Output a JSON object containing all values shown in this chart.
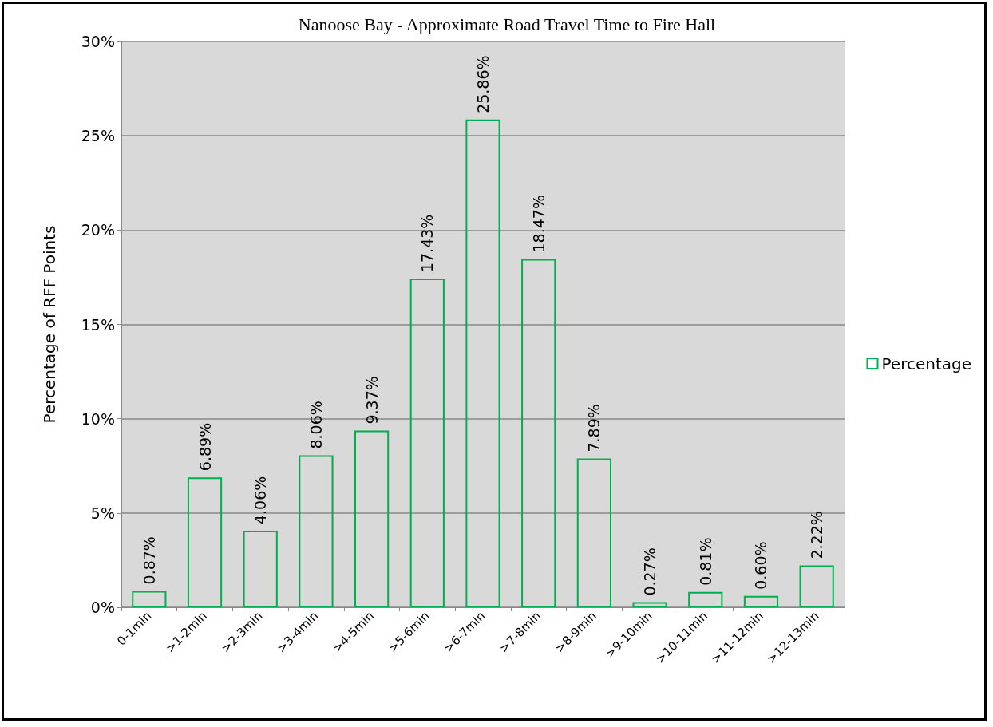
{
  "chart_data": {
    "type": "bar",
    "title": "Nanoose Bay - Approximate Road Travel Time to Fire Hall",
    "ylabel": "Percentage of RFF Points",
    "categories": [
      "0-1min",
      ">1-2min",
      ">2-3min",
      ">3-4min",
      ">4-5min",
      ">5-6min",
      ">6-7min",
      ">7-8min",
      ">8-9min",
      ">9-10min",
      ">10-11min",
      ">11-12min",
      ">12-13min"
    ],
    "series": [
      {
        "name": "Percentage",
        "color": "#00b050",
        "values": [
          0.87,
          6.89,
          4.06,
          8.06,
          9.37,
          17.43,
          25.86,
          18.47,
          7.89,
          0.27,
          0.81,
          0.6,
          2.22
        ],
        "value_labels": [
          "0.87%",
          "6.89%",
          "4.06%",
          "8.06%",
          "9.37%",
          "17.43%",
          "25.86%",
          "18.47%",
          "7.89%",
          "0.27%",
          "0.81%",
          "0.60%",
          "2.22%"
        ]
      }
    ],
    "ylim": [
      0,
      30
    ],
    "yticks": [
      {
        "value": 0,
        "label": "0%"
      },
      {
        "value": 5,
        "label": "5%"
      },
      {
        "value": 10,
        "label": "10%"
      },
      {
        "value": 15,
        "label": "15%"
      },
      {
        "value": 20,
        "label": "20%"
      },
      {
        "value": 25,
        "label": "25%"
      },
      {
        "value": 30,
        "label": "30%"
      }
    ],
    "grid": "y",
    "legend": "right"
  }
}
